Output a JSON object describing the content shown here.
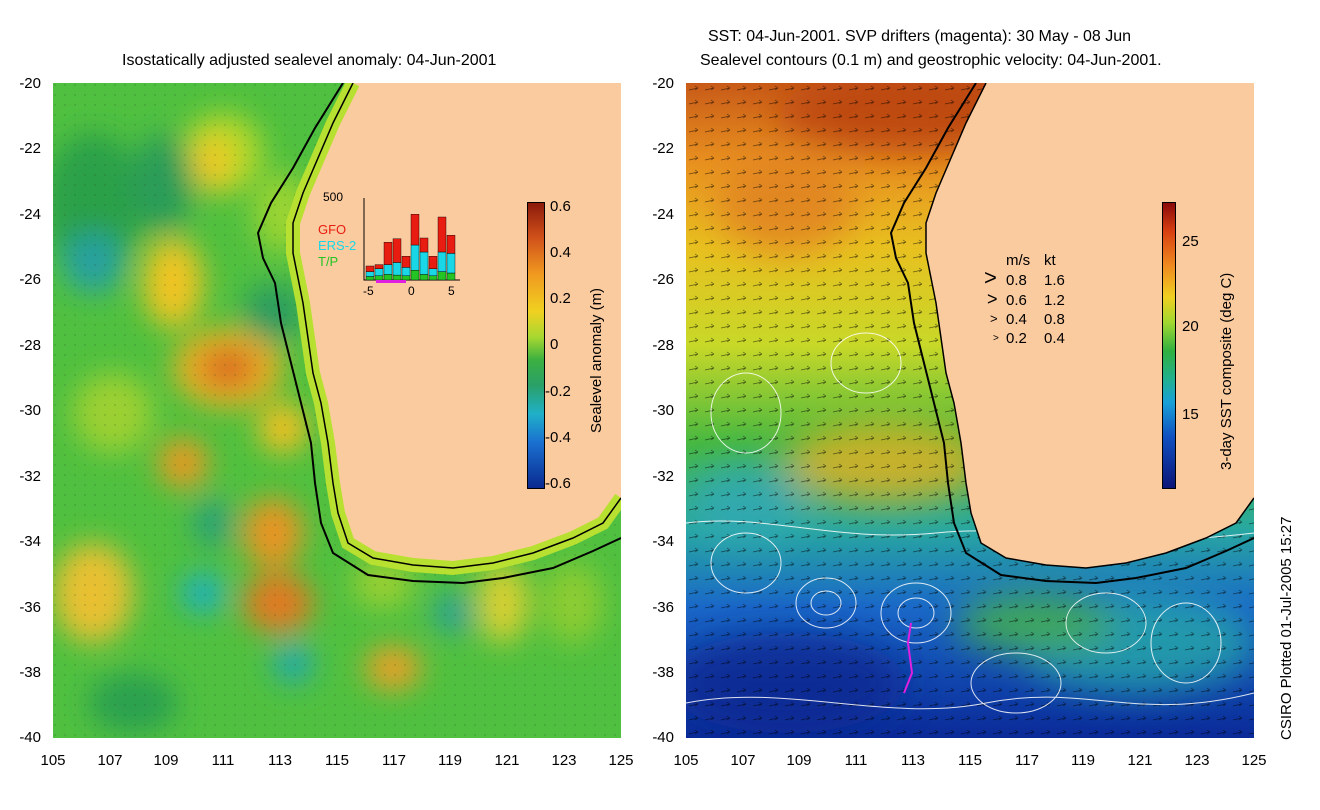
{
  "left_panel": {
    "title": "Isostatically adjusted sealevel anomaly: 04-Jun-2001",
    "y_ticks": [
      "-20",
      "-22",
      "-24",
      "-26",
      "-28",
      "-30",
      "-32",
      "-34",
      "-36",
      "-38",
      "-40"
    ],
    "x_ticks": [
      "105",
      "107",
      "109",
      "111",
      "113",
      "115",
      "117",
      "119",
      "121",
      "123",
      "125"
    ],
    "colorbar": {
      "label": "Sealevel anomaly (m)",
      "ticks": [
        "0.6",
        "0.4",
        "0.2",
        "0",
        "-0.2",
        "-0.4",
        "-0.6"
      ]
    },
    "inset": {
      "ymax": "500",
      "legend": [
        {
          "label": "GFO",
          "color": "#e81c10"
        },
        {
          "label": "ERS-2",
          "color": "#19d7e6"
        },
        {
          "label": "T/P",
          "color": "#23c423"
        }
      ],
      "x_ticks": [
        "-5",
        "0",
        "5"
      ],
      "bars": [
        {
          "gfo": 40,
          "ers": 35,
          "tp": 25
        },
        {
          "gfo": 30,
          "ers": 50,
          "tp": 30
        },
        {
          "gfo": 160,
          "ers": 70,
          "tp": 40
        },
        {
          "gfo": 170,
          "ers": 90,
          "tp": 35
        },
        {
          "gfo": 80,
          "ers": 60,
          "tp": 30
        },
        {
          "gfo": 220,
          "ers": 180,
          "tp": 70
        },
        {
          "gfo": 100,
          "ers": 160,
          "tp": 40
        },
        {
          "gfo": 90,
          "ers": 50,
          "tp": 30
        },
        {
          "gfo": 250,
          "ers": 140,
          "tp": 60
        },
        {
          "gfo": 130,
          "ers": 140,
          "tp": 50
        }
      ]
    }
  },
  "right_panel": {
    "title_line1": "SST: 04-Jun-2001. SVP drifters (magenta): 30 May - 08 Jun",
    "title_line2": "Sealevel contours (0.1 m) and geostrophic velocity: 04-Jun-2001.",
    "y_ticks": [
      "-20",
      "-22",
      "-24",
      "-26",
      "-28",
      "-30",
      "-32",
      "-34",
      "-36",
      "-38",
      "-40"
    ],
    "x_ticks": [
      "105",
      "107",
      "109",
      "111",
      "113",
      "115",
      "117",
      "119",
      "121",
      "123",
      "125"
    ],
    "colorbar": {
      "label": "3-day SST composite (deg C)",
      "ticks": [
        "25",
        "20",
        "15"
      ]
    },
    "velocity_legend": {
      "header_ms": "m/s",
      "header_kt": "kt",
      "rows": [
        {
          "ms": "0.8",
          "kt": "1.6"
        },
        {
          "ms": "0.6",
          "kt": "1.2"
        },
        {
          "ms": "0.4",
          "kt": "0.8"
        },
        {
          "ms": "0.2",
          "kt": "0.4"
        }
      ]
    }
  },
  "footer_credit": "CSIRO Plotted 01-Jul-2005 15:27",
  "colors": {
    "land": "#fbcba0",
    "coast": "#000000"
  }
}
